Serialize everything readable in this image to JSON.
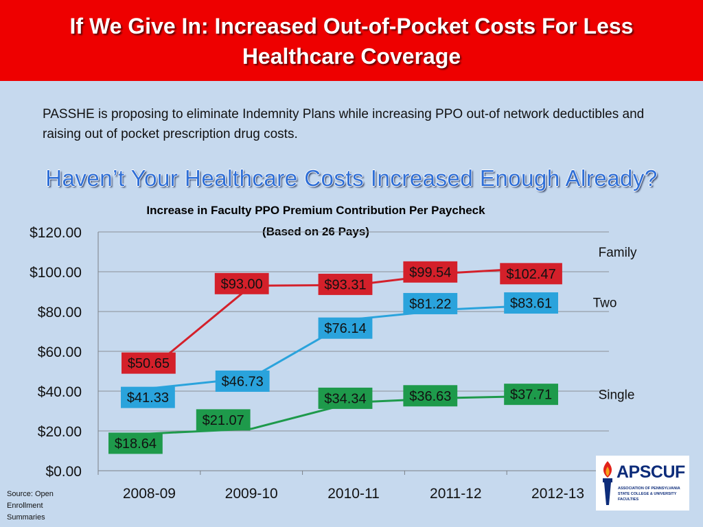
{
  "header": {
    "title": "If We Give In: Increased Out-of-Pocket Costs For Less Healthcare Coverage"
  },
  "intro": "PASSHE is proposing to eliminate Indemnity Plans while increasing PPO out-of network deductibles and raising out of pocket prescription drug costs.",
  "subtitle": "Haven’t Your Healthcare Costs Increased Enough Already?",
  "source": "Source: Open Enrollment Summaries",
  "logo": {
    "name": "APSCUF",
    "subtitle": "ASSOCIATION OF PENNSYLVANIA STATE COLLEGE & UNIVERSITY FACULTIES"
  },
  "chart_data": {
    "type": "line",
    "title": "Increase in Faculty PPO Premium Contribution Per Paycheck (Based on 26 Pays)",
    "title_lines": [
      "Increase in Faculty PPO Premium Contribution Per Paycheck",
      "(Based on 26 Pays)"
    ],
    "categories": [
      "2008-09",
      "2009-10",
      "2010-11",
      "2011-12",
      "2012-13"
    ],
    "yticks": [
      "$0.00",
      "$20.00",
      "$40.00",
      "$60.00",
      "$80.00",
      "$100.00",
      "$120.00"
    ],
    "ylim": [
      0,
      120
    ],
    "grid": true,
    "series": [
      {
        "name": "Family",
        "color": "#d4202a",
        "values": [
          50.65,
          93.0,
          93.31,
          99.54,
          102.47
        ],
        "labels": [
          "$50.65",
          "$93.00",
          "$93.31",
          "$99.54",
          "$102.47"
        ]
      },
      {
        "name": "Two",
        "color": "#2aa3dc",
        "values": [
          41.33,
          46.73,
          76.14,
          81.22,
          83.61
        ],
        "labels": [
          "$41.33",
          "$46.73",
          "$76.14",
          "$81.22",
          "$83.61"
        ]
      },
      {
        "name": "Single",
        "color": "#1e9a4b",
        "values": [
          18.64,
          21.07,
          34.34,
          36.63,
          37.71
        ],
        "labels": [
          "$18.64",
          "$21.07",
          "$34.34",
          "$36.63",
          "$37.71"
        ]
      }
    ]
  }
}
